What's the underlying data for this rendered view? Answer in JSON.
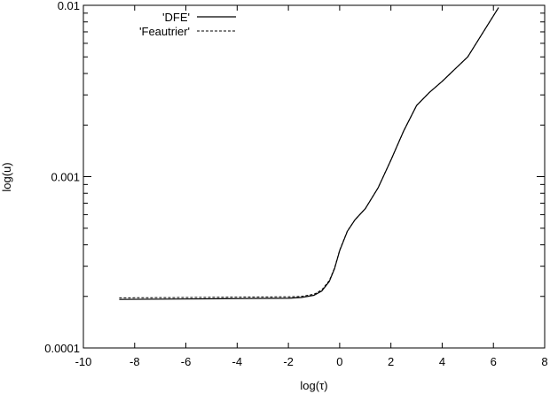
{
  "chart_data": {
    "type": "line",
    "xlabel": "log(τ)",
    "ylabel": "log(u)",
    "xlim": [
      -10,
      8
    ],
    "ylim": [
      0.0001,
      0.01
    ],
    "yscale": "log",
    "xticks": [
      "-10",
      "-8",
      "-6",
      "-4",
      "-2",
      "0",
      "2",
      "4",
      "6",
      "8"
    ],
    "yticks": [
      "0.0001",
      "0.001",
      "0.01"
    ],
    "grid": false,
    "legend_position": "top-left",
    "series": [
      {
        "name": "'DFE'",
        "style": "solid",
        "color": "#000000",
        "x": [
          -8.6,
          -6,
          -4,
          -2,
          -1.5,
          -1.0,
          -0.7,
          -0.4,
          -0.2,
          0.0,
          0.3,
          0.6,
          1.0,
          1.5,
          2.0,
          2.5,
          3.0,
          3.5,
          4.0,
          5.0,
          6.2
        ],
        "y": [
          0.000192,
          0.000193,
          0.000194,
          0.000195,
          0.000197,
          0.000203,
          0.000215,
          0.000245,
          0.00029,
          0.00037,
          0.00048,
          0.00056,
          0.00065,
          0.00086,
          0.00125,
          0.00185,
          0.0026,
          0.0031,
          0.0036,
          0.005,
          0.0097
        ]
      },
      {
        "name": "'Feautrier'",
        "style": "dashed",
        "color": "#000000",
        "x": [
          -8.6,
          -6,
          -4,
          -2,
          -1.5,
          -1.0,
          -0.7,
          -0.4,
          -0.2,
          0.0,
          0.3,
          0.6,
          1.0,
          1.5,
          2.0,
          2.5,
          3.0,
          3.5,
          4.0,
          5.0,
          6.2
        ],
        "y": [
          0.000196,
          0.000197,
          0.000198,
          0.000199,
          0.0002,
          0.000206,
          0.000218,
          0.000248,
          0.000293,
          0.000372,
          0.000482,
          0.000561,
          0.000651,
          0.000861,
          0.00125,
          0.00185,
          0.0026,
          0.0031,
          0.0036,
          0.005,
          0.0097
        ]
      }
    ]
  }
}
